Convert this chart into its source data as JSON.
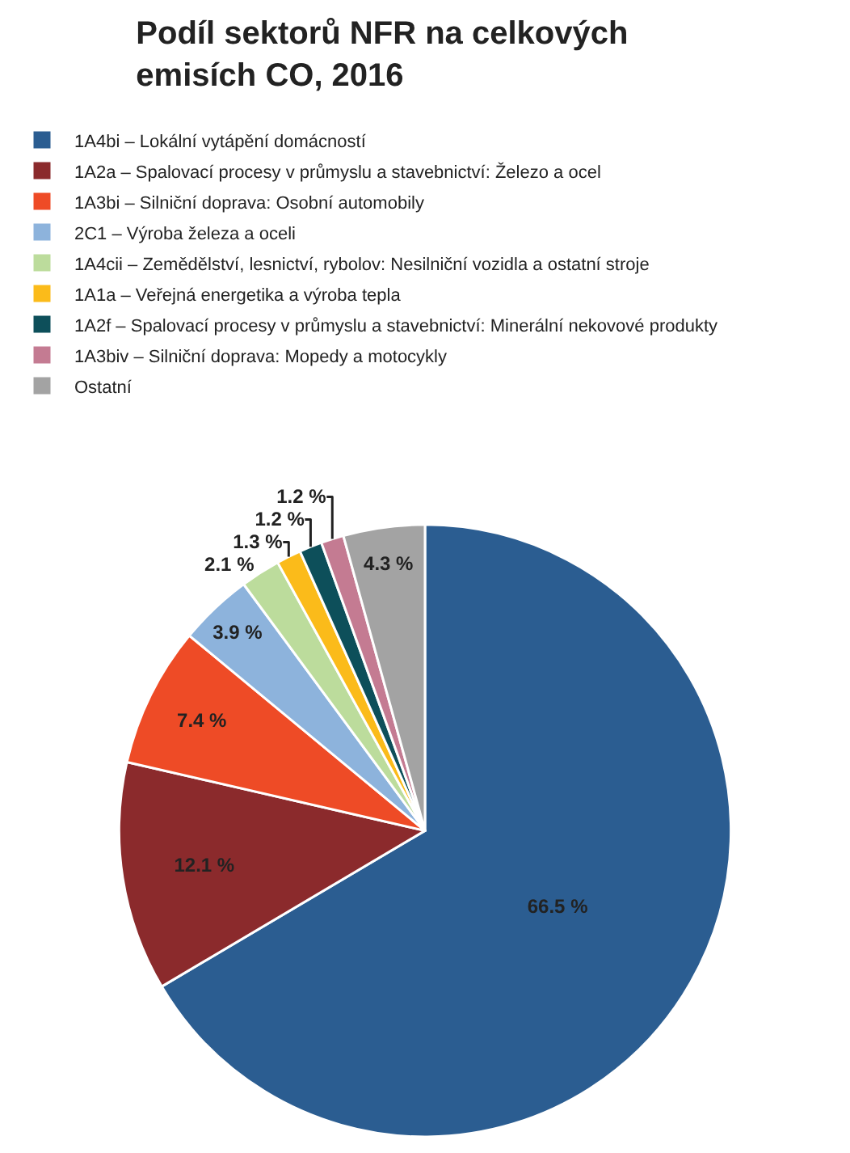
{
  "chart_data": {
    "type": "pie",
    "title": "Podíl sektorů NFR na celkových emisích CO, 2016",
    "categories": [
      "1A4bi – Lokální vytápění domácností",
      "1A2a – Spalovací procesy v průmyslu a stavebnictví: Železo a ocel",
      "1A3bi – Silniční doprava: Osobní automobily",
      "2C1 – Výroba železa a oceli",
      "1A4cii – Zemědělství, lesnictví, rybolov: Nesilniční vozidla a ostatní stroje",
      "1A1a – Veřejná energetika a výroba tepla",
      "1A2f – Spalovací procesy v průmyslu a stavebnictví: Minerální nekovové produkty",
      "1A3biv – Silniční doprava: Mopedy a motocykly",
      "Ostatní"
    ],
    "values": [
      66.5,
      12.1,
      7.4,
      3.9,
      2.1,
      1.3,
      1.2,
      1.2,
      4.3
    ],
    "value_labels": [
      "66.5 %",
      "12.1 %",
      "7.4 %",
      "3.9 %",
      "2.1 %",
      "1.3 %",
      "1.2 %",
      "1.2 %",
      "4.3 %"
    ],
    "colors": [
      "#2b5d91",
      "#8b2a2c",
      "#ee4b26",
      "#8db3dc",
      "#bcdc9c",
      "#fbbb1a",
      "#0d4f5a",
      "#c47b92",
      "#a3a3a3"
    ],
    "legend": "top"
  }
}
